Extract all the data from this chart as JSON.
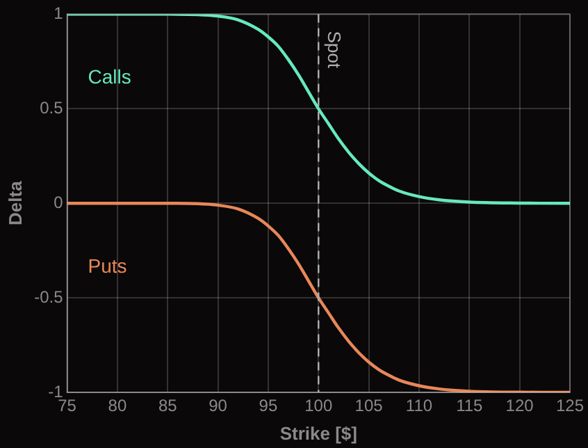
{
  "chart_data": {
    "type": "line",
    "xlabel": "Strike [$]",
    "ylabel": "Delta",
    "xlim": [
      75,
      125
    ],
    "xticks": [
      75,
      80,
      85,
      90,
      95,
      100,
      105,
      110,
      115,
      120,
      125
    ],
    "ylim": [
      -1,
      1
    ],
    "yticks": [
      -1,
      -0.5,
      0,
      0.5,
      1
    ],
    "grid": true,
    "legend": false,
    "marker": "none",
    "line_style": "solid",
    "x": [
      75,
      80,
      85,
      88,
      90,
      92,
      94,
      95,
      96,
      97,
      98,
      99,
      100,
      101,
      102,
      103,
      104,
      105,
      106,
      107,
      108,
      110,
      112,
      115,
      120,
      125
    ],
    "series": [
      {
        "name": "Calls",
        "color": "#66e8c0",
        "values": [
          1,
          1,
          1,
          0.998,
          0.99,
          0.97,
          0.92,
          0.88,
          0.83,
          0.76,
          0.68,
          0.59,
          0.5,
          0.42,
          0.34,
          0.27,
          0.21,
          0.16,
          0.12,
          0.09,
          0.065,
          0.035,
          0.018,
          0.006,
          0.001,
          0
        ]
      },
      {
        "name": "Puts",
        "color": "#e8875a",
        "values": [
          0,
          0,
          0,
          -0.002,
          -0.01,
          -0.03,
          -0.08,
          -0.12,
          -0.17,
          -0.24,
          -0.32,
          -0.41,
          -0.5,
          -0.58,
          -0.66,
          -0.73,
          -0.79,
          -0.84,
          -0.88,
          -0.91,
          -0.935,
          -0.965,
          -0.982,
          -0.994,
          -0.999,
          -1
        ]
      }
    ],
    "ref_lines": [
      {
        "axis": "x",
        "value": 100,
        "label": "Spot",
        "color": "#b0b0b0",
        "line_style": "dashed"
      }
    ]
  }
}
